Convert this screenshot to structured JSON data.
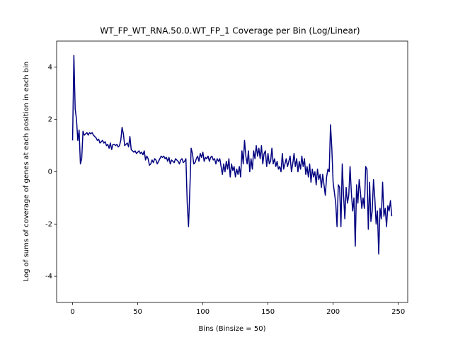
{
  "chart_data": {
    "type": "line",
    "title": "WT_FP_WT_RNA.50.0.WT_FP_1 Coverage per Bin (Log/Linear)",
    "x_label": "Bins (Binsize = 50)",
    "y_label": "Log of sums of coverage of genes at each position in each bin",
    "color": "#000080",
    "x": [
      0,
      1,
      2,
      3,
      4,
      5,
      6,
      7,
      8,
      9,
      10,
      11,
      12,
      13,
      14,
      15,
      16,
      17,
      18,
      19,
      20,
      21,
      22,
      23,
      24,
      25,
      26,
      27,
      28,
      29,
      30,
      31,
      32,
      33,
      34,
      35,
      36,
      37,
      38,
      39,
      40,
      41,
      42,
      43,
      44,
      45,
      46,
      47,
      48,
      49,
      50,
      51,
      52,
      53,
      54,
      55,
      56,
      57,
      58,
      59,
      60,
      61,
      62,
      63,
      64,
      65,
      66,
      67,
      68,
      69,
      70,
      71,
      72,
      73,
      74,
      75,
      76,
      77,
      78,
      79,
      80,
      81,
      82,
      83,
      84,
      85,
      86,
      87,
      88,
      89,
      90,
      91,
      92,
      93,
      94,
      95,
      96,
      97,
      98,
      99,
      100,
      101,
      102,
      103,
      104,
      105,
      106,
      107,
      108,
      109,
      110,
      111,
      112,
      113,
      114,
      115,
      116,
      117,
      118,
      119,
      120,
      121,
      122,
      123,
      124,
      125,
      126,
      127,
      128,
      129,
      130,
      131,
      132,
      133,
      134,
      135,
      136,
      137,
      138,
      139,
      140,
      141,
      142,
      143,
      144,
      145,
      146,
      147,
      148,
      149,
      150,
      151,
      152,
      153,
      154,
      155,
      156,
      157,
      158,
      159,
      160,
      161,
      162,
      163,
      164,
      165,
      166,
      167,
      168,
      169,
      170,
      171,
      172,
      173,
      174,
      175,
      176,
      177,
      178,
      179,
      180,
      181,
      182,
      183,
      184,
      185,
      186,
      187,
      188,
      189,
      190,
      191,
      192,
      193,
      194,
      195,
      196,
      197,
      198,
      199,
      200,
      201,
      202,
      203,
      204,
      205,
      206,
      207,
      208,
      209,
      210,
      211,
      212,
      213,
      214,
      215,
      216,
      217,
      218,
      219,
      220,
      221,
      222,
      223,
      224,
      225,
      226,
      227,
      228,
      229,
      230,
      231,
      232,
      233,
      234,
      235,
      236,
      237,
      238,
      239,
      240,
      241,
      242,
      243,
      244,
      245
    ],
    "values": [
      1.2,
      4.45,
      2.4,
      2.0,
      1.2,
      1.6,
      0.3,
      0.5,
      1.55,
      1.4,
      1.45,
      1.5,
      1.4,
      1.5,
      1.45,
      1.5,
      1.4,
      1.35,
      1.3,
      1.2,
      1.25,
      1.1,
      1.15,
      1.2,
      1.1,
      1.15,
      1.0,
      1.05,
      0.9,
      1.1,
      0.85,
      1.05,
      1.05,
      1.0,
      1.05,
      0.95,
      1.0,
      1.2,
      1.7,
      1.45,
      1.0,
      1.05,
      1.1,
      0.95,
      1.35,
      0.85,
      0.8,
      0.75,
      0.8,
      0.7,
      0.75,
      0.8,
      0.7,
      0.75,
      0.65,
      0.8,
      0.45,
      0.6,
      0.5,
      0.25,
      0.3,
      0.45,
      0.35,
      0.5,
      0.45,
      0.3,
      0.4,
      0.5,
      0.6,
      0.55,
      0.6,
      0.5,
      0.55,
      0.4,
      0.55,
      0.3,
      0.45,
      0.4,
      0.35,
      0.5,
      0.45,
      0.4,
      0.3,
      0.45,
      0.5,
      0.35,
      0.4,
      0.5,
      -1.2,
      -2.1,
      -0.7,
      0.9,
      0.7,
      0.3,
      0.35,
      0.5,
      0.6,
      0.4,
      0.7,
      0.55,
      0.75,
      0.4,
      0.55,
      0.5,
      0.6,
      0.4,
      0.55,
      0.6,
      0.45,
      0.5,
      0.3,
      0.5,
      0.4,
      0.5,
      0.2,
      -0.1,
      0.3,
      0.0,
      0.4,
      0.1,
      0.5,
      -0.2,
      0.3,
      0.05,
      0.2,
      -0.2,
      0.1,
      -0.1,
      0.2,
      -0.2,
      0.8,
      0.3,
      1.2,
      0.6,
      0.3,
      0.8,
      0.0,
      0.5,
      0.1,
      0.8,
      0.5,
      1.0,
      0.6,
      0.9,
      0.5,
      1.0,
      0.3,
      0.7,
      0.8,
      0.2,
      0.7,
      0.3,
      0.4,
      0.9,
      0.3,
      0.5,
      0.2,
      0.4,
      0.1,
      0.2,
      0.0,
      0.7,
      0.1,
      0.3,
      0.5,
      0.2,
      0.4,
      0.6,
      0.0,
      0.3,
      0.7,
      0.2,
      0.5,
      0.0,
      0.4,
      0.1,
      0.6,
      0.2,
      0.5,
      -0.1,
      0.2,
      -0.2,
      0.3,
      -0.4,
      0.1,
      -0.2,
      0.0,
      -0.5,
      0.1,
      -0.3,
      -0.1,
      -0.6,
      -0.1,
      -0.5,
      -0.9,
      -0.2,
      0.1,
      0.0,
      1.8,
      0.9,
      -0.4,
      -0.8,
      -1.2,
      -2.1,
      -0.5,
      -0.6,
      -2.1,
      0.3,
      -0.9,
      -1.8,
      -0.6,
      -1.2,
      -0.9,
      0.2,
      -0.8,
      -1.5,
      -1.0,
      -2.85,
      -0.5,
      -1.2,
      -0.3,
      -0.8,
      -1.4,
      -1.0,
      -1.4,
      0.2,
      0.1,
      -2.2,
      -0.4,
      -1.9,
      -1.5,
      -0.3,
      -1.0,
      -2.0,
      -1.5,
      -3.15,
      -1.4,
      -1.8,
      -0.4,
      -1.7,
      -1.4,
      -2.1,
      -1.3,
      -1.5,
      -1.1,
      -1.7
    ],
    "xlim": [
      -12.25,
      257.25
    ],
    "xticks": [
      0,
      50,
      100,
      150,
      200,
      250
    ],
    "ylim": [
      -5,
      5
    ],
    "yticks": [
      -4,
      -2,
      0,
      2,
      4
    ]
  }
}
